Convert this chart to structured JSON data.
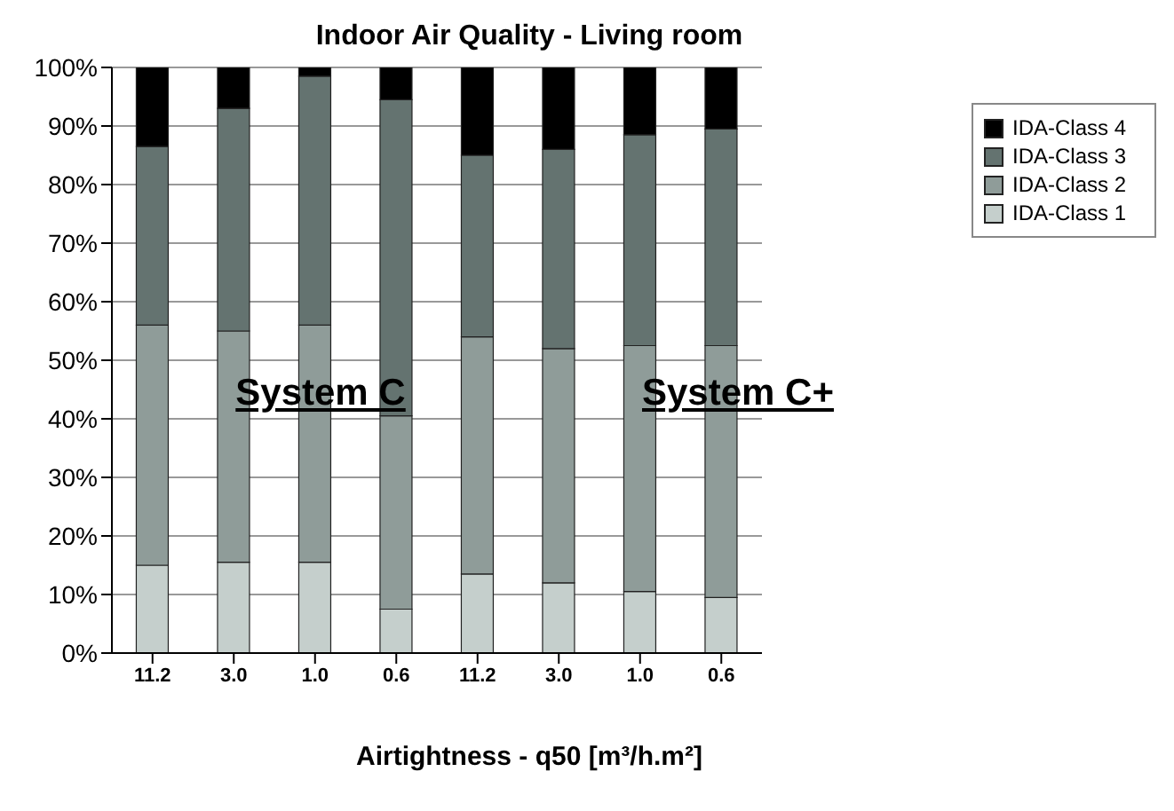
{
  "chart_data": {
    "type": "bar",
    "title": "Indoor Air Quality - Living room",
    "xlabel": "Airtightness - q50 [m³/h.m²]",
    "categories": [
      "11.2",
      "3.0",
      "1.0",
      "0.6",
      "11.2",
      "3.0",
      "1.0",
      "0.6"
    ],
    "stacked": true,
    "series": [
      {
        "name": "IDA-Class 1",
        "color": "#c5cfcc",
        "values": [
          15,
          15.5,
          15.5,
          7.5,
          13.5,
          12,
          10.5,
          9.5
        ]
      },
      {
        "name": "IDA-Class 2",
        "color": "#8f9c99",
        "values": [
          41,
          39.5,
          40.5,
          33,
          40.5,
          40,
          42,
          43
        ]
      },
      {
        "name": "IDA-Class 3",
        "color": "#647370",
        "values": [
          30.5,
          38,
          42.5,
          54,
          31,
          34,
          36,
          37
        ]
      },
      {
        "name": "IDA-Class 4",
        "color": "#000000",
        "values": [
          13.5,
          7,
          1.5,
          5.5,
          15,
          14,
          11.5,
          10.5
        ]
      }
    ],
    "ylim": [
      0,
      100
    ],
    "yticks": [
      {
        "value": 0,
        "label": "0%"
      },
      {
        "value": 10,
        "label": "10%"
      },
      {
        "value": 20,
        "label": "20%"
      },
      {
        "value": 30,
        "label": "30%"
      },
      {
        "value": 40,
        "label": "40%"
      },
      {
        "value": 50,
        "label": "50%"
      },
      {
        "value": 60,
        "label": "60%"
      },
      {
        "value": 70,
        "label": "70%"
      },
      {
        "value": 80,
        "label": "80%"
      },
      {
        "value": 90,
        "label": "90%"
      },
      {
        "value": 100,
        "label": "100%"
      }
    ],
    "grid": "y",
    "legend": "right",
    "annotations": [
      "System C",
      "System C+"
    ]
  }
}
